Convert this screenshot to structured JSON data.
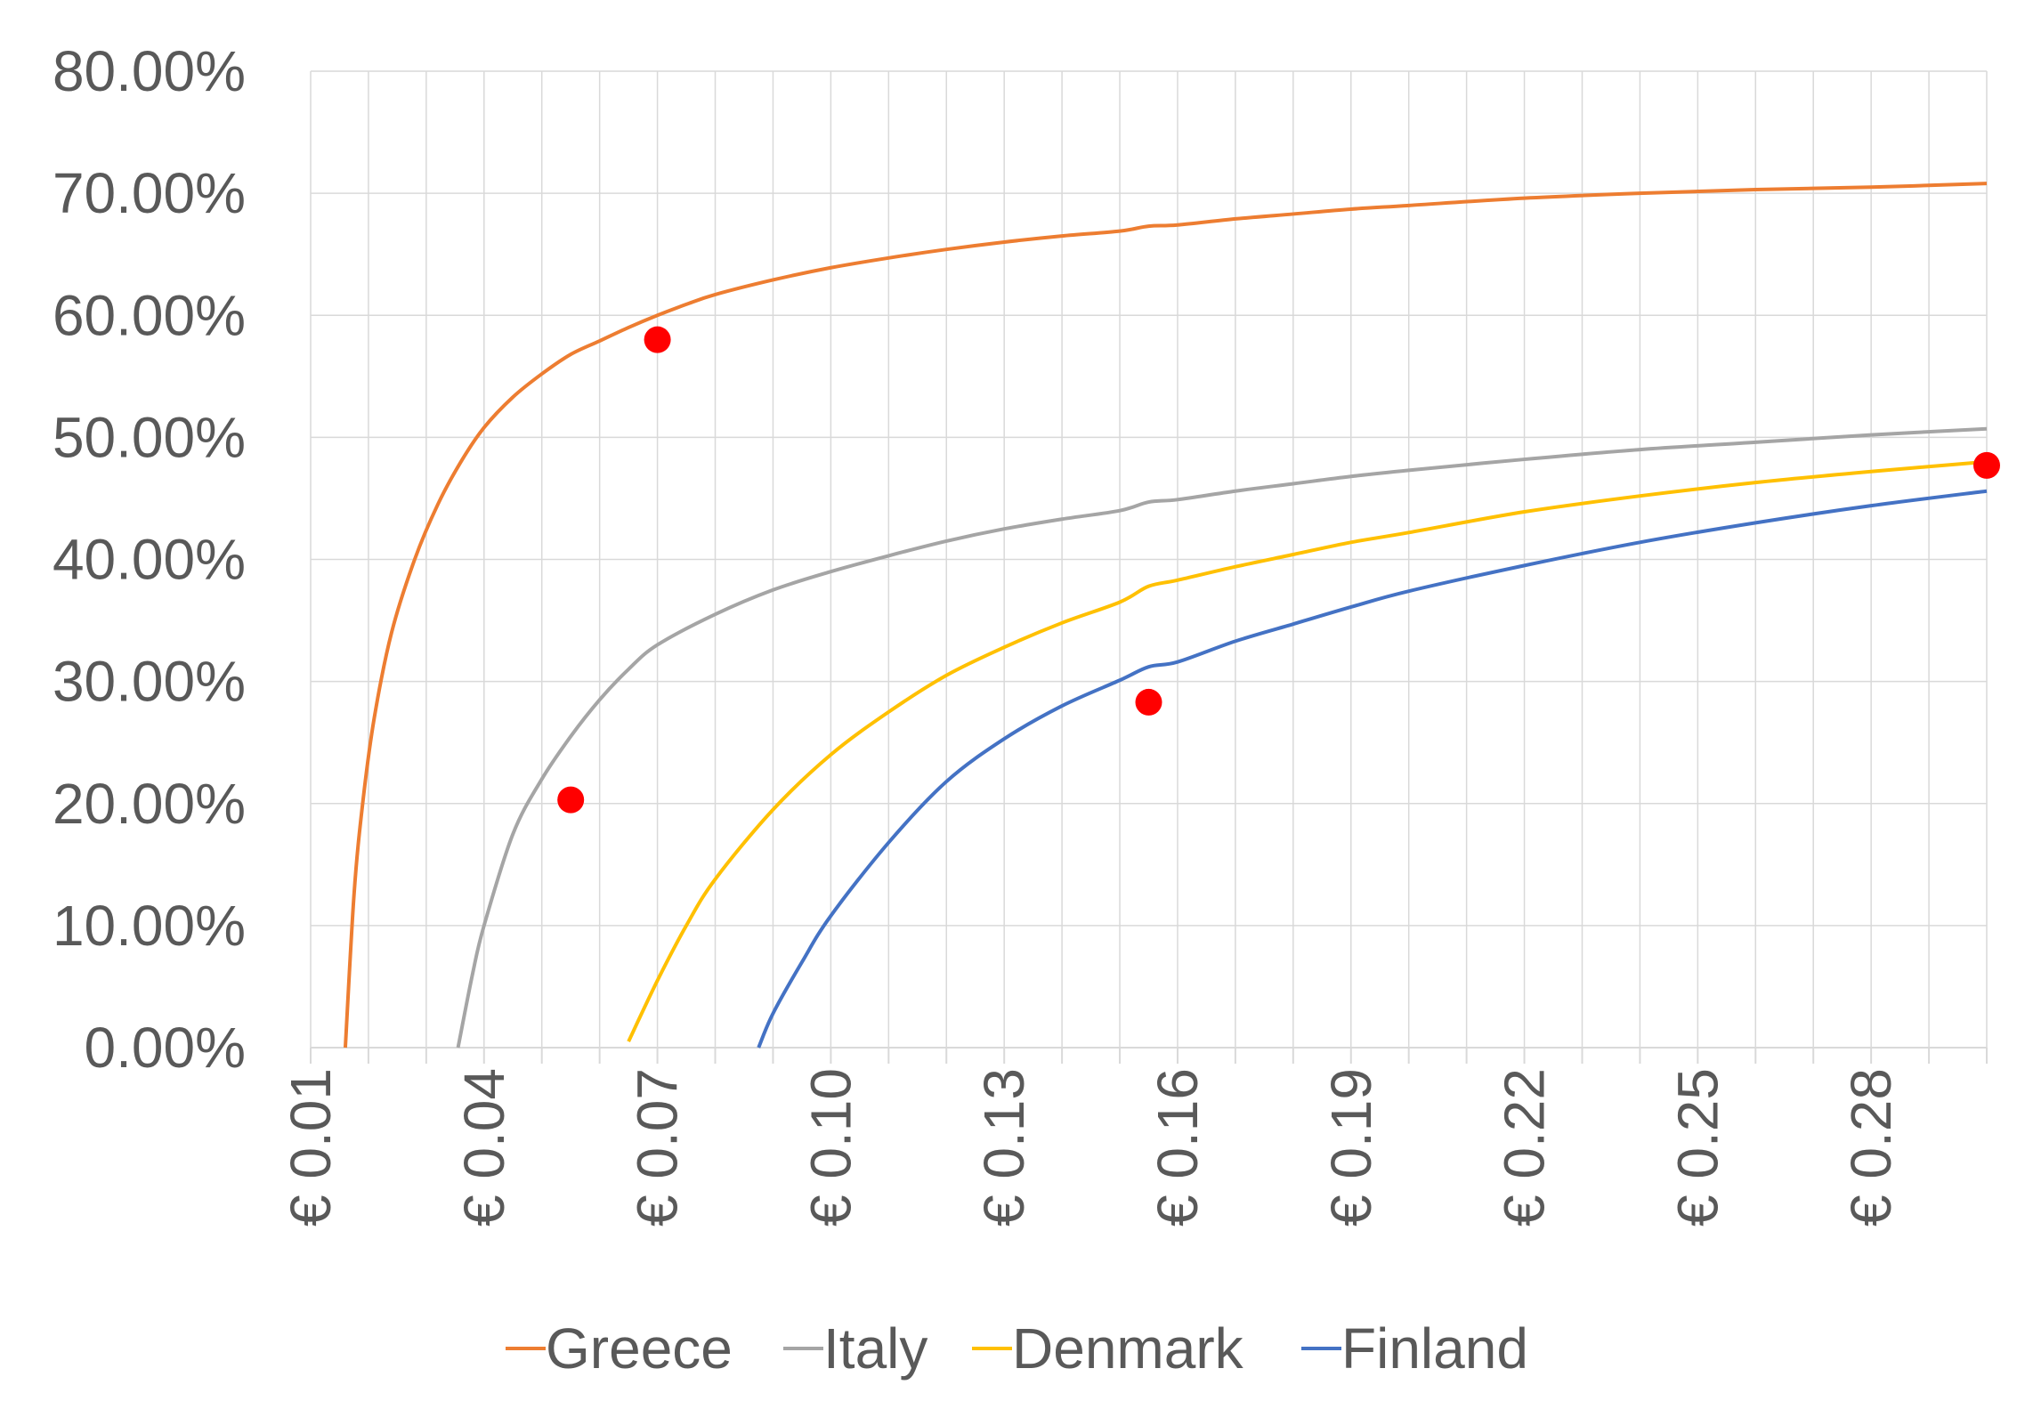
{
  "chart_data": {
    "type": "line",
    "title": "",
    "xlabel": "",
    "ylabel": "",
    "xlim": [
      0.01,
      0.3
    ],
    "ylim": [
      0,
      80
    ],
    "y_ticks": [
      "0.00%",
      "10.00%",
      "20.00%",
      "30.00%",
      "40.00%",
      "50.00%",
      "60.00%",
      "70.00%",
      "80.00%"
    ],
    "x_ticks": [
      "€ 0.01",
      "€ 0.04",
      "€ 0.07",
      "€ 0.10",
      "€ 0.13",
      "€ 0.16",
      "€ 0.19",
      "€ 0.22",
      "€ 0.25",
      "€ 0.28"
    ],
    "x_tick_values": [
      0.01,
      0.04,
      0.07,
      0.1,
      0.13,
      0.16,
      0.19,
      0.22,
      0.25,
      0.28
    ],
    "grid": true,
    "legend_position": "bottom",
    "series": [
      {
        "name": "Greece",
        "color": "#ED7D31",
        "x": [
          0.016,
          0.0175,
          0.019,
          0.021,
          0.024,
          0.028,
          0.032,
          0.036,
          0.04,
          0.045,
          0.05,
          0.055,
          0.06,
          0.065,
          0.07,
          0.075,
          0.08,
          0.09,
          0.1,
          0.11,
          0.12,
          0.13,
          0.14,
          0.15,
          0.155,
          0.16,
          0.17,
          0.18,
          0.19,
          0.2,
          0.22,
          0.24,
          0.26,
          0.28,
          0.3
        ],
        "y": [
          0.0,
          12.5,
          20.0,
          27.0,
          34.0,
          40.0,
          44.5,
          48.0,
          50.8,
          53.3,
          55.2,
          56.8,
          57.9,
          59.0,
          60.0,
          60.9,
          61.7,
          62.9,
          63.9,
          64.7,
          65.4,
          66.0,
          66.5,
          66.9,
          67.3,
          67.4,
          67.9,
          68.3,
          68.7,
          69.0,
          69.6,
          70.0,
          70.3,
          70.5,
          70.8
        ]
      },
      {
        "name": "Italy",
        "color": "#A5A5A5",
        "x": [
          0.0355,
          0.038,
          0.04,
          0.045,
          0.05,
          0.055,
          0.06,
          0.065,
          0.07,
          0.08,
          0.09,
          0.1,
          0.11,
          0.12,
          0.13,
          0.14,
          0.15,
          0.155,
          0.16,
          0.17,
          0.18,
          0.19,
          0.2,
          0.22,
          0.24,
          0.26,
          0.28,
          0.3
        ],
        "y": [
          0.0,
          6.0,
          10.0,
          17.5,
          22.0,
          25.5,
          28.5,
          31.0,
          33.0,
          35.5,
          37.5,
          39.0,
          40.3,
          41.5,
          42.5,
          43.3,
          44.0,
          44.7,
          44.9,
          45.6,
          46.2,
          46.8,
          47.3,
          48.2,
          49.0,
          49.6,
          50.2,
          50.7
        ]
      },
      {
        "name": "Denmark",
        "color": "#FFC000",
        "x": [
          0.065,
          0.07,
          0.075,
          0.08,
          0.09,
          0.1,
          0.11,
          0.12,
          0.13,
          0.14,
          0.15,
          0.155,
          0.16,
          0.17,
          0.18,
          0.19,
          0.2,
          0.22,
          0.24,
          0.26,
          0.28,
          0.3
        ],
        "y": [
          0.5,
          5.5,
          10.0,
          13.8,
          19.5,
          24.0,
          27.5,
          30.5,
          32.8,
          34.8,
          36.5,
          37.8,
          38.3,
          39.4,
          40.4,
          41.4,
          42.2,
          43.9,
          45.2,
          46.3,
          47.2,
          48.0
        ]
      },
      {
        "name": "Finland",
        "color": "#4472C4",
        "x": [
          0.0875,
          0.09,
          0.095,
          0.1,
          0.11,
          0.12,
          0.13,
          0.14,
          0.15,
          0.155,
          0.16,
          0.17,
          0.18,
          0.19,
          0.2,
          0.22,
          0.24,
          0.26,
          0.28,
          0.3
        ],
        "y": [
          0.0,
          2.8,
          7.0,
          10.8,
          16.8,
          21.8,
          25.3,
          28.0,
          30.1,
          31.2,
          31.6,
          33.3,
          34.7,
          36.1,
          37.4,
          39.5,
          41.4,
          43.0,
          44.4,
          45.6
        ]
      }
    ],
    "highlight_points": {
      "color": "#FF0000",
      "points": [
        {
          "x": 0.07,
          "y": 58.0
        },
        {
          "x": 0.055,
          "y": 20.3
        },
        {
          "x": 0.155,
          "y": 28.3
        },
        {
          "x": 0.3,
          "y": 47.7
        }
      ]
    }
  }
}
